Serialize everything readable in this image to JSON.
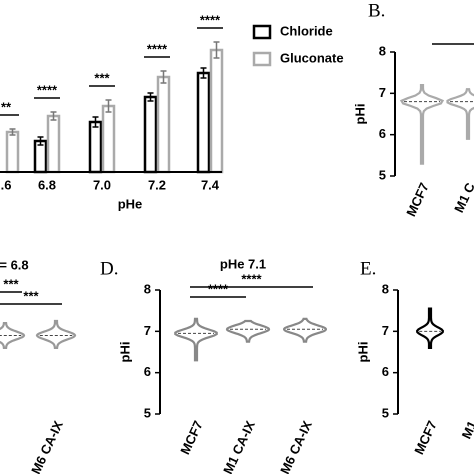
{
  "chart_data": [
    {
      "type": "bar",
      "categories": [
        ".6",
        "6.8",
        "7.0",
        "7.2",
        "7.4"
      ],
      "x_label": "pHe",
      "series": [
        {
          "name": "Chloride",
          "color": "#000000",
          "values": [
            null,
            31,
            50,
            75,
            99
          ],
          "errors": [
            null,
            4,
            5,
            4,
            5
          ]
        },
        {
          "name": "Gluconate",
          "color": "#aaaaaa",
          "values": [
            40,
            56,
            66,
            95,
            122
          ],
          "errors": [
            3,
            4,
            6,
            6,
            8
          ]
        }
      ],
      "significance": [
        "**",
        "****",
        "***",
        "****",
        "****"
      ]
    },
    {
      "type": "violin",
      "panel_label": "B.",
      "y_label": "pHi",
      "categories": [
        "MCF7",
        "M1 C"
      ],
      "medians": [
        6.8,
        6.8
      ],
      "mins": [
        5.3,
        5.9
      ],
      "maxs": [
        7.2,
        7.1
      ],
      "color": "#aaaaaa",
      "ylim": [
        5,
        8
      ],
      "yticks": [
        5,
        6,
        7,
        8
      ]
    },
    {
      "type": "violin",
      "title": "= 6.8",
      "categories": [
        null,
        "M6 CA-IX"
      ],
      "medians": [
        6.9,
        6.9
      ],
      "mins": [
        6.6,
        6.6
      ],
      "maxs": [
        7.2,
        7.25
      ],
      "color": "#999999",
      "significance": [
        "***",
        "***"
      ]
    },
    {
      "type": "violin",
      "panel_label": "D.",
      "title": "pHe 7.1",
      "y_label": "pHi",
      "categories": [
        "MCF7",
        "M1 CA-IX",
        "M6 CA-IX"
      ],
      "medians": [
        6.95,
        7.05,
        7.05
      ],
      "mins": [
        6.3,
        6.75,
        6.75
      ],
      "maxs": [
        7.3,
        7.25,
        7.3
      ],
      "color": "#888888",
      "ylim": [
        5,
        8
      ],
      "yticks": [
        5,
        6,
        7,
        8
      ],
      "significance": [
        "****",
        "****"
      ]
    },
    {
      "type": "violin",
      "panel_label": "E.",
      "y_label": "pHi",
      "categories": [
        "MCF7",
        "M1"
      ],
      "medians": [
        7.0,
        null
      ],
      "mins": [
        6.6,
        null
      ],
      "maxs": [
        7.55,
        null
      ],
      "color": "#000000",
      "ylim": [
        5,
        8
      ],
      "yticks": [
        5,
        6,
        7,
        8
      ]
    }
  ]
}
